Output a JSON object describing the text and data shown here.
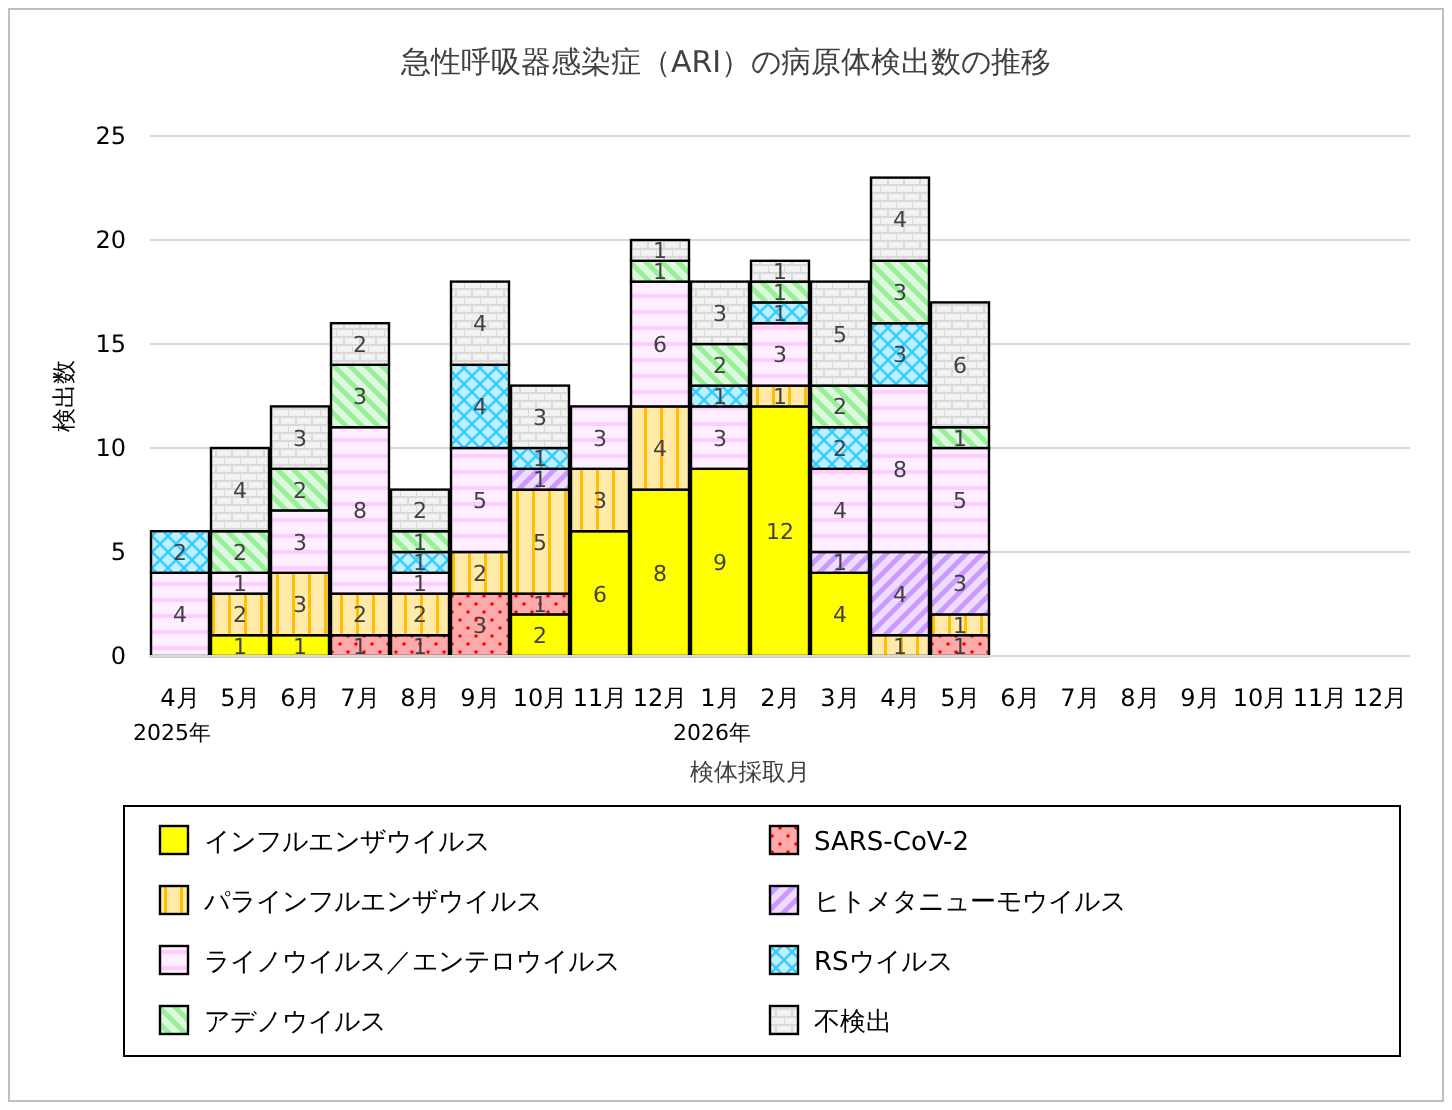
{
  "chart_data": {
    "type": "bar",
    "stacked": true,
    "title": "急性呼吸器感染症（ARI）の病原体検出数の推移",
    "xlabel": "検体採取月",
    "ylabel": "検出数",
    "categories": [
      "4月\n2025年",
      "5月",
      "6月",
      "7月",
      "8月",
      "9月",
      "10月",
      "11月",
      "12月",
      "1月\n2026年",
      "2月",
      "3月",
      "4月",
      "5月",
      "6月",
      "7月",
      "8月",
      "9月",
      "10月",
      "11月",
      "12月"
    ],
    "ylim": [
      0,
      25
    ],
    "yticks": [
      0,
      5,
      10,
      15,
      20,
      25
    ],
    "grid": "y",
    "legend": "bottom",
    "data_labels": true,
    "series": [
      {
        "name": "インフルエンザウイルス",
        "color": "#ffff00",
        "values": [
          null,
          1,
          1,
          null,
          null,
          null,
          2,
          6,
          8,
          9,
          12,
          4,
          null,
          null,
          null,
          null,
          null,
          null,
          null,
          null,
          null
        ]
      },
      {
        "name": "SARS-CoV-2",
        "color": "#ff0000",
        "values": [
          null,
          null,
          null,
          1,
          1,
          3,
          1,
          null,
          null,
          null,
          null,
          null,
          null,
          1,
          null,
          null,
          null,
          null,
          null,
          null,
          null
        ]
      },
      {
        "name": "パラインフルエンザウイルス",
        "color": "#ffc000",
        "values": [
          null,
          2,
          3,
          2,
          2,
          2,
          5,
          3,
          4,
          null,
          1,
          null,
          1,
          1,
          null,
          null,
          null,
          null,
          null,
          null,
          null
        ]
      },
      {
        "name": "ヒトメタニューモウイルス",
        "color": "#cc99ff",
        "values": [
          null,
          null,
          null,
          null,
          null,
          null,
          1,
          null,
          null,
          null,
          null,
          1,
          4,
          3,
          null,
          null,
          null,
          null,
          null,
          null,
          null
        ]
      },
      {
        "name": "ライノウイルス／エンテロウイルス",
        "color": "#ffccff",
        "values": [
          4,
          1,
          3,
          8,
          1,
          5,
          null,
          3,
          6,
          3,
          3,
          4,
          8,
          5,
          null,
          null,
          null,
          null,
          null,
          null,
          null
        ]
      },
      {
        "name": "RSウイルス",
        "color": "#33ccff",
        "values": [
          2,
          null,
          null,
          null,
          1,
          4,
          1,
          null,
          null,
          1,
          1,
          2,
          3,
          null,
          null,
          null,
          null,
          null,
          null,
          null,
          null
        ]
      },
      {
        "name": "アデノウイルス",
        "color": "#99ee99",
        "values": [
          null,
          2,
          2,
          3,
          1,
          null,
          null,
          null,
          1,
          2,
          1,
          2,
          3,
          1,
          null,
          null,
          null,
          null,
          null,
          null,
          null
        ]
      },
      {
        "name": "不検出",
        "color": "#d9d9d9",
        "values": [
          null,
          4,
          3,
          2,
          2,
          4,
          3,
          null,
          1,
          3,
          1,
          5,
          4,
          6,
          null,
          null,
          null,
          null,
          null,
          null,
          null
        ]
      }
    ]
  }
}
